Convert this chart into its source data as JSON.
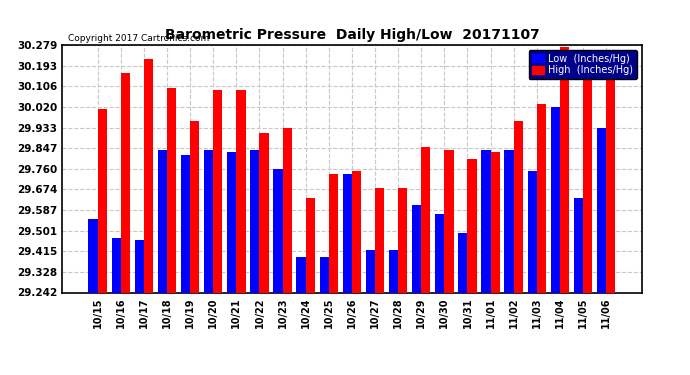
{
  "title": "Barometric Pressure  Daily High/Low  20171107",
  "copyright": "Copyright 2017 Cartronics.com",
  "legend_low": "Low  (Inches/Hg)",
  "legend_high": "High  (Inches/Hg)",
  "low_color": "#0000ff",
  "high_color": "#ff0000",
  "background_color": "#ffffff",
  "grid_color": "#c8c8c8",
  "ymin": 29.242,
  "ymax": 30.279,
  "yticks": [
    29.242,
    29.328,
    29.415,
    29.501,
    29.587,
    29.674,
    29.76,
    29.847,
    29.933,
    30.02,
    30.106,
    30.193,
    30.279
  ],
  "categories": [
    "10/15",
    "10/16",
    "10/17",
    "10/18",
    "10/19",
    "10/20",
    "10/21",
    "10/22",
    "10/23",
    "10/24",
    "10/25",
    "10/26",
    "10/27",
    "10/28",
    "10/29",
    "10/30",
    "10/31",
    "11/01",
    "11/02",
    "11/03",
    "11/04",
    "11/05",
    "11/06"
  ],
  "low_values": [
    29.55,
    29.47,
    29.46,
    29.84,
    29.82,
    29.84,
    29.83,
    29.84,
    29.76,
    29.39,
    29.39,
    29.74,
    29.42,
    29.42,
    29.61,
    29.57,
    29.49,
    29.84,
    29.84,
    29.75,
    30.02,
    29.64,
    29.93
  ],
  "high_values": [
    30.01,
    30.16,
    30.22,
    30.1,
    29.96,
    30.09,
    30.09,
    29.91,
    29.93,
    29.64,
    29.74,
    29.75,
    29.68,
    29.68,
    29.85,
    29.84,
    29.8,
    29.83,
    29.96,
    30.03,
    30.27,
    30.15,
    30.2
  ]
}
